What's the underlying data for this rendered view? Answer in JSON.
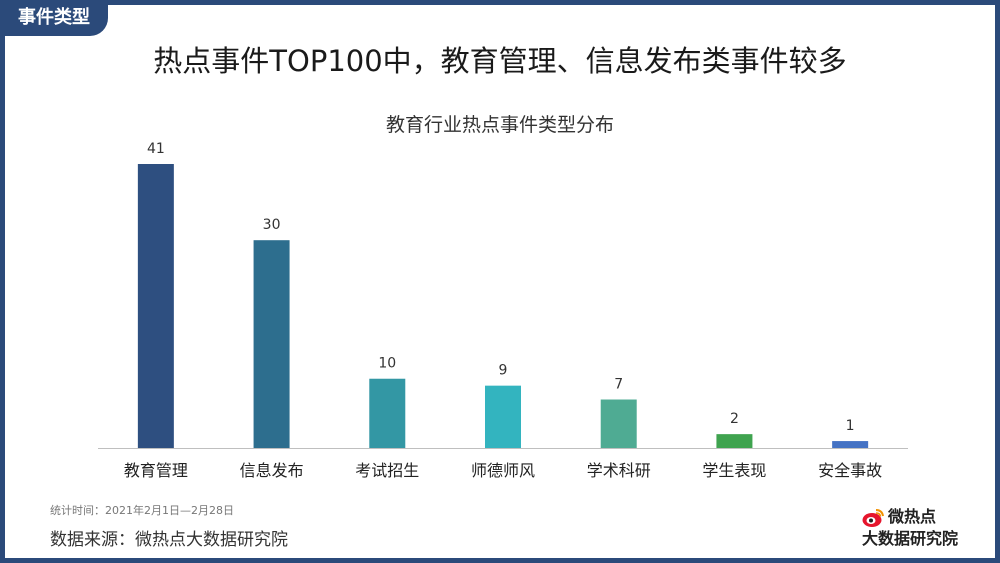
{
  "tag_label": "事件类型",
  "headline": "热点事件TOP100中，教育管理、信息发布类事件较多",
  "footer": {
    "period": "统计时间：2021年2月1日—2月28日",
    "source": "数据来源：微热点大数据研究院"
  },
  "logo": {
    "icon": "weibo-eye-icon",
    "line1": "微热点",
    "line2": "大数据研究院"
  },
  "colors": {
    "frame": "#2b4a7a",
    "axis": "#bfbfbf"
  },
  "chart_data": {
    "type": "bar",
    "title": "教育行业热点事件类型分布",
    "categories": [
      "教育管理",
      "信息发布",
      "考试招生",
      "师德师风",
      "学术科研",
      "学生表现",
      "安全事故"
    ],
    "values": [
      41,
      30,
      10,
      9,
      7,
      2,
      1
    ],
    "bar_colors": [
      "#2e4f80",
      "#2d6e8e",
      "#3397a4",
      "#33b4bf",
      "#4fab93",
      "#3fa34f",
      "#4472c4"
    ],
    "data_labels": true,
    "ylim": [
      0,
      41
    ],
    "grid": false,
    "legend": "none"
  }
}
